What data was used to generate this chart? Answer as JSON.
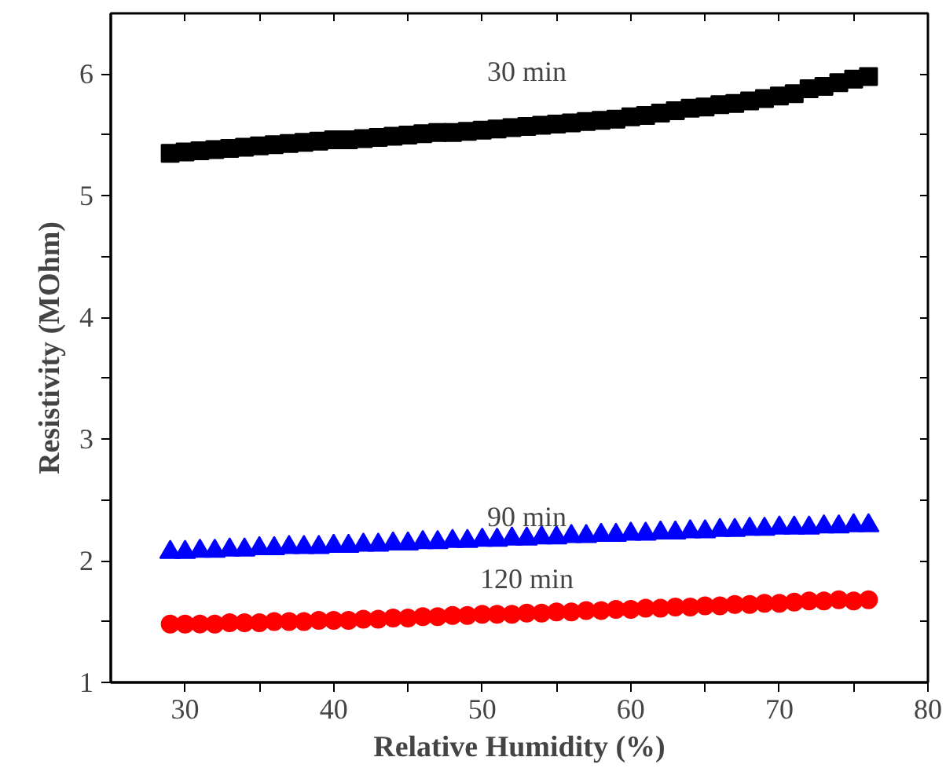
{
  "chart_data": {
    "type": "scatter",
    "xlabel": "Relative Humidity (%)",
    "ylabel": "Resistivity (MOhm)",
    "x": [
      29,
      30,
      31,
      32,
      33,
      34,
      35,
      36,
      37,
      38,
      39,
      40,
      41,
      42,
      43,
      44,
      45,
      46,
      47,
      48,
      49,
      50,
      51,
      52,
      53,
      54,
      55,
      56,
      57,
      58,
      59,
      60,
      61,
      62,
      63,
      64,
      65,
      66,
      67,
      68,
      69,
      70,
      71,
      72,
      73,
      74,
      75,
      76
    ],
    "series": [
      {
        "name": "30 min",
        "color": "#000000",
        "marker": "square",
        "values": [
          5.35,
          5.36,
          5.37,
          5.38,
          5.39,
          5.4,
          5.41,
          5.42,
          5.43,
          5.44,
          5.45,
          5.46,
          5.46,
          5.47,
          5.48,
          5.49,
          5.5,
          5.51,
          5.52,
          5.52,
          5.53,
          5.54,
          5.55,
          5.56,
          5.57,
          5.58,
          5.59,
          5.6,
          5.61,
          5.62,
          5.63,
          5.65,
          5.66,
          5.68,
          5.7,
          5.72,
          5.73,
          5.75,
          5.76,
          5.78,
          5.8,
          5.82,
          5.84,
          5.88,
          5.9,
          5.93,
          5.96,
          5.98
        ]
      },
      {
        "name": "90 min",
        "color": "#0000ff",
        "marker": "triangle",
        "values": [
          2.07,
          2.07,
          2.08,
          2.08,
          2.09,
          2.09,
          2.1,
          2.1,
          2.11,
          2.11,
          2.11,
          2.12,
          2.12,
          2.13,
          2.13,
          2.14,
          2.14,
          2.15,
          2.15,
          2.16,
          2.16,
          2.17,
          2.17,
          2.18,
          2.18,
          2.19,
          2.19,
          2.2,
          2.2,
          2.21,
          2.21,
          2.22,
          2.22,
          2.23,
          2.23,
          2.24,
          2.24,
          2.25,
          2.25,
          2.26,
          2.26,
          2.27,
          2.27,
          2.27,
          2.28,
          2.28,
          2.29,
          2.29
        ]
      },
      {
        "name": "120 min",
        "color": "#ff0000",
        "marker": "circle",
        "values": [
          1.48,
          1.48,
          1.48,
          1.48,
          1.49,
          1.49,
          1.49,
          1.5,
          1.5,
          1.5,
          1.51,
          1.51,
          1.51,
          1.52,
          1.52,
          1.53,
          1.53,
          1.54,
          1.54,
          1.55,
          1.55,
          1.56,
          1.56,
          1.56,
          1.57,
          1.57,
          1.58,
          1.58,
          1.59,
          1.59,
          1.6,
          1.6,
          1.61,
          1.61,
          1.62,
          1.62,
          1.63,
          1.63,
          1.64,
          1.64,
          1.65,
          1.65,
          1.66,
          1.67,
          1.67,
          1.68,
          1.67,
          1.68
        ]
      }
    ],
    "xlim": [
      25,
      80
    ],
    "ylim": [
      1,
      6.5
    ],
    "xticks": [
      30,
      {
        "value": 35,
        "label": null
      },
      40,
      {
        "value": 45,
        "label": null
      },
      50,
      {
        "value": 55,
        "label": null
      },
      60,
      {
        "value": 65,
        "label": null
      },
      70,
      {
        "value": 75,
        "label": null
      },
      80
    ],
    "yticks": [
      1,
      {
        "value": 1.5,
        "label": null
      },
      2,
      {
        "value": 2.5,
        "label": null
      },
      3,
      {
        "value": 3.5,
        "label": null
      },
      4,
      {
        "value": 4.5,
        "label": null
      },
      5,
      {
        "value": 5.5,
        "label": null
      },
      6
    ],
    "grid": false,
    "legend": false
  }
}
